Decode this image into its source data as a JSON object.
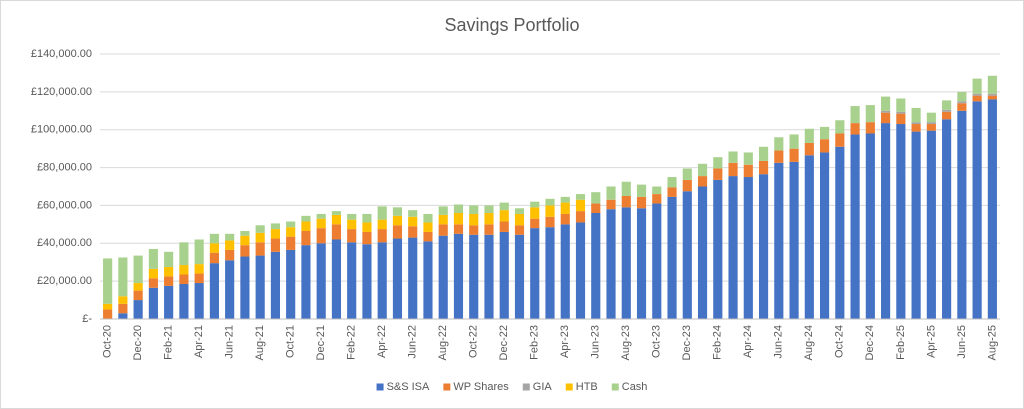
{
  "chart_data": {
    "type": "stacked_bar",
    "title": "Savings Portfolio",
    "categories": [
      "Oct-20",
      null,
      "Dec-20",
      null,
      "Feb-21",
      null,
      "Apr-21",
      null,
      "Jun-21",
      null,
      "Aug-21",
      null,
      "Oct-21",
      null,
      "Dec-21",
      null,
      "Feb-22",
      null,
      "Apr-22",
      null,
      "Jun-22",
      null,
      "Aug-22",
      null,
      "Oct-22",
      null,
      "Dec-22",
      null,
      "Feb-23",
      null,
      "Apr-23",
      null,
      "Jun-23",
      null,
      "Aug-23",
      null,
      "Oct-23",
      null,
      "Dec-23",
      null,
      "Feb-24",
      null,
      "Apr-24",
      null,
      "Jun-24",
      null,
      "Aug-24",
      null,
      "Oct-24",
      null,
      "Dec-24",
      null,
      "Feb-25",
      null,
      "Apr-25",
      null,
      "Jun-25",
      null,
      "Aug-25"
    ],
    "series": [
      {
        "name": "S&S ISA",
        "color": "#4472c4",
        "values": [
          0,
          3000,
          10000,
          16500,
          17500,
          18500,
          19000,
          29500,
          31000,
          33000,
          33500,
          35500,
          36500,
          39000,
          40000,
          42000,
          40500,
          39500,
          40500,
          42500,
          43000,
          41000,
          44000,
          45000,
          44500,
          44500,
          46000,
          44500,
          48000,
          48500,
          50000,
          51000,
          56000,
          58000,
          59000,
          58500,
          61000,
          64500,
          67500,
          70000,
          73500,
          75500,
          75000,
          76500,
          82500,
          83000,
          86500,
          88000,
          91000,
          97500,
          98000,
          103500,
          103000,
          99000,
          99500,
          105500,
          110000,
          115000,
          116000
        ]
      },
      {
        "name": "WP Shares",
        "color": "#ed7d31",
        "values": [
          5000,
          5000,
          5000,
          5000,
          5000,
          5000,
          5000,
          5500,
          5500,
          6000,
          7000,
          7000,
          7000,
          7500,
          8000,
          8000,
          7000,
          6500,
          7000,
          7000,
          6000,
          5000,
          6000,
          5000,
          5000,
          5500,
          5500,
          5000,
          5000,
          5500,
          5500,
          6000,
          5000,
          5000,
          6000,
          6000,
          5000,
          5000,
          6000,
          5500,
          6000,
          7000,
          6500,
          7000,
          6500,
          7000,
          6500,
          7000,
          7000,
          6000,
          6000,
          5500,
          5500,
          4000,
          3500,
          4000,
          4000,
          3000,
          2000
        ]
      },
      {
        "name": "GIA",
        "color": "#a5a5a5",
        "values": [
          0,
          0,
          0,
          0,
          0,
          0,
          0,
          0,
          0,
          0,
          0,
          0,
          0,
          0,
          0,
          0,
          0,
          0,
          0,
          0,
          0,
          0,
          0,
          0,
          0,
          0,
          0,
          0,
          0,
          0,
          0,
          0,
          0,
          0,
          0,
          0,
          0,
          0,
          0,
          0,
          0,
          0,
          0,
          0,
          0,
          0,
          0,
          0,
          0,
          0,
          0,
          1000,
          1000,
          1000,
          1000,
          1000,
          1000,
          1000,
          1000
        ]
      },
      {
        "name": "HTB",
        "color": "#ffc000",
        "values": [
          3000,
          4000,
          4000,
          5000,
          5000,
          5000,
          5000,
          5000,
          5000,
          5000,
          5000,
          5000,
          5000,
          5000,
          5000,
          5000,
          5000,
          5000,
          5000,
          5000,
          5000,
          5000,
          5000,
          6000,
          6000,
          6000,
          6000,
          6000,
          6000,
          6000,
          6000,
          6000,
          0,
          0,
          0,
          0,
          0,
          0,
          0,
          0,
          0,
          0,
          0,
          0,
          0,
          0,
          0,
          0,
          0,
          0,
          0,
          0,
          0,
          0,
          0,
          0,
          0,
          0,
          0
        ]
      },
      {
        "name": "Cash",
        "color": "#a9d18e",
        "values": [
          24000,
          20500,
          14500,
          10500,
          8000,
          12000,
          13000,
          5000,
          3500,
          2500,
          4000,
          3000,
          3000,
          3000,
          2500,
          2000,
          3000,
          4500,
          7000,
          4500,
          3500,
          4500,
          4500,
          4500,
          4500,
          4000,
          4000,
          3000,
          3000,
          3500,
          3000,
          3000,
          6000,
          7000,
          7500,
          6500,
          4000,
          5500,
          6000,
          6500,
          6000,
          6000,
          6500,
          7500,
          7000,
          7500,
          7500,
          6500,
          7000,
          9000,
          9000,
          7500,
          7000,
          7500,
          5000,
          5000,
          5000,
          8000,
          9500
        ]
      }
    ],
    "ylim": [
      0,
      140000
    ],
    "yticks": [
      {
        "value": 0,
        "label": "£-"
      },
      {
        "value": 20000,
        "label": "£20,000.00"
      },
      {
        "value": 40000,
        "label": "£40,000.00"
      },
      {
        "value": 60000,
        "label": "£60,000.00"
      },
      {
        "value": 80000,
        "label": "£80,000.00"
      },
      {
        "value": 100000,
        "label": "£100,000.00"
      },
      {
        "value": 120000,
        "label": "£120,000.00"
      },
      {
        "value": 140000,
        "label": "£140,000.00"
      }
    ],
    "grid": true,
    "legend": "bottom"
  }
}
